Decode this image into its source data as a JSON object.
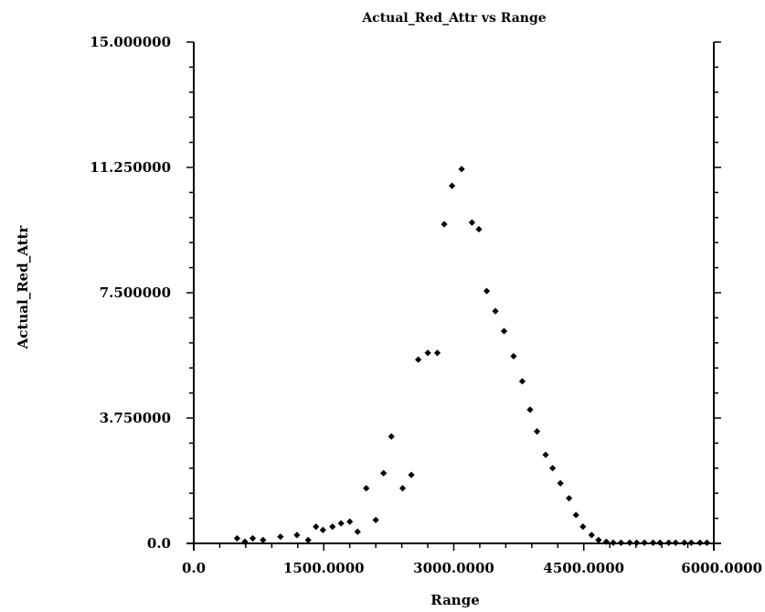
{
  "chart_data": {
    "type": "scatter",
    "title": "Actual_Red_Attr vs Range",
    "xlabel": "Range",
    "ylabel": "Actual_Red_Attr",
    "xlim": [
      0,
      6000
    ],
    "ylim": [
      0,
      15
    ],
    "x_tick_labels": [
      "0.0",
      "1500.0000",
      "3000.0000",
      "4500.0000",
      "6000.0000"
    ],
    "x_tick_values": [
      0,
      1500,
      3000,
      4500,
      6000
    ],
    "y_tick_labels": [
      "0.0",
      "3.750000",
      "7.500000",
      "11.250000",
      "15.000000"
    ],
    "y_tick_values": [
      0,
      3.75,
      7.5,
      11.25,
      15
    ],
    "grid": false,
    "marker_color": "#000000",
    "points": [
      {
        "x": 500,
        "y": 0.15
      },
      {
        "x": 590,
        "y": 0.05
      },
      {
        "x": 680,
        "y": 0.15
      },
      {
        "x": 800,
        "y": 0.1
      },
      {
        "x": 1000,
        "y": 0.2
      },
      {
        "x": 1190,
        "y": 0.25
      },
      {
        "x": 1320,
        "y": 0.1
      },
      {
        "x": 1410,
        "y": 0.5
      },
      {
        "x": 1490,
        "y": 0.4
      },
      {
        "x": 1600,
        "y": 0.5
      },
      {
        "x": 1700,
        "y": 0.6
      },
      {
        "x": 1800,
        "y": 0.65
      },
      {
        "x": 1890,
        "y": 0.35
      },
      {
        "x": 1990,
        "y": 1.65
      },
      {
        "x": 2100,
        "y": 0.7
      },
      {
        "x": 2190,
        "y": 2.1
      },
      {
        "x": 2280,
        "y": 3.2
      },
      {
        "x": 2410,
        "y": 1.65
      },
      {
        "x": 2510,
        "y": 2.05
      },
      {
        "x": 2590,
        "y": 5.5
      },
      {
        "x": 2700,
        "y": 5.7
      },
      {
        "x": 2810,
        "y": 5.7
      },
      {
        "x": 2890,
        "y": 9.55
      },
      {
        "x": 2980,
        "y": 10.7
      },
      {
        "x": 3090,
        "y": 11.2
      },
      {
        "x": 3210,
        "y": 9.6
      },
      {
        "x": 3290,
        "y": 9.4
      },
      {
        "x": 3380,
        "y": 7.55
      },
      {
        "x": 3480,
        "y": 6.95
      },
      {
        "x": 3580,
        "y": 6.35
      },
      {
        "x": 3690,
        "y": 5.6
      },
      {
        "x": 3790,
        "y": 4.85
      },
      {
        "x": 3880,
        "y": 4.0
      },
      {
        "x": 3960,
        "y": 3.35
      },
      {
        "x": 4060,
        "y": 2.65
      },
      {
        "x": 4140,
        "y": 2.25
      },
      {
        "x": 4230,
        "y": 1.8
      },
      {
        "x": 4330,
        "y": 1.35
      },
      {
        "x": 4410,
        "y": 0.85
      },
      {
        "x": 4490,
        "y": 0.5
      },
      {
        "x": 4590,
        "y": 0.25
      },
      {
        "x": 4670,
        "y": 0.1
      },
      {
        "x": 4760,
        "y": 0.05
      },
      {
        "x": 4840,
        "y": 0.02
      },
      {
        "x": 4930,
        "y": 0.02
      },
      {
        "x": 5030,
        "y": 0.02
      },
      {
        "x": 5110,
        "y": 0.02
      },
      {
        "x": 5200,
        "y": 0.02
      },
      {
        "x": 5300,
        "y": 0.02
      },
      {
        "x": 5380,
        "y": 0.02
      },
      {
        "x": 5480,
        "y": 0.02
      },
      {
        "x": 5560,
        "y": 0.02
      },
      {
        "x": 5660,
        "y": 0.02
      },
      {
        "x": 5740,
        "y": 0.02
      },
      {
        "x": 5840,
        "y": 0.02
      },
      {
        "x": 5920,
        "y": 0.02
      }
    ]
  }
}
